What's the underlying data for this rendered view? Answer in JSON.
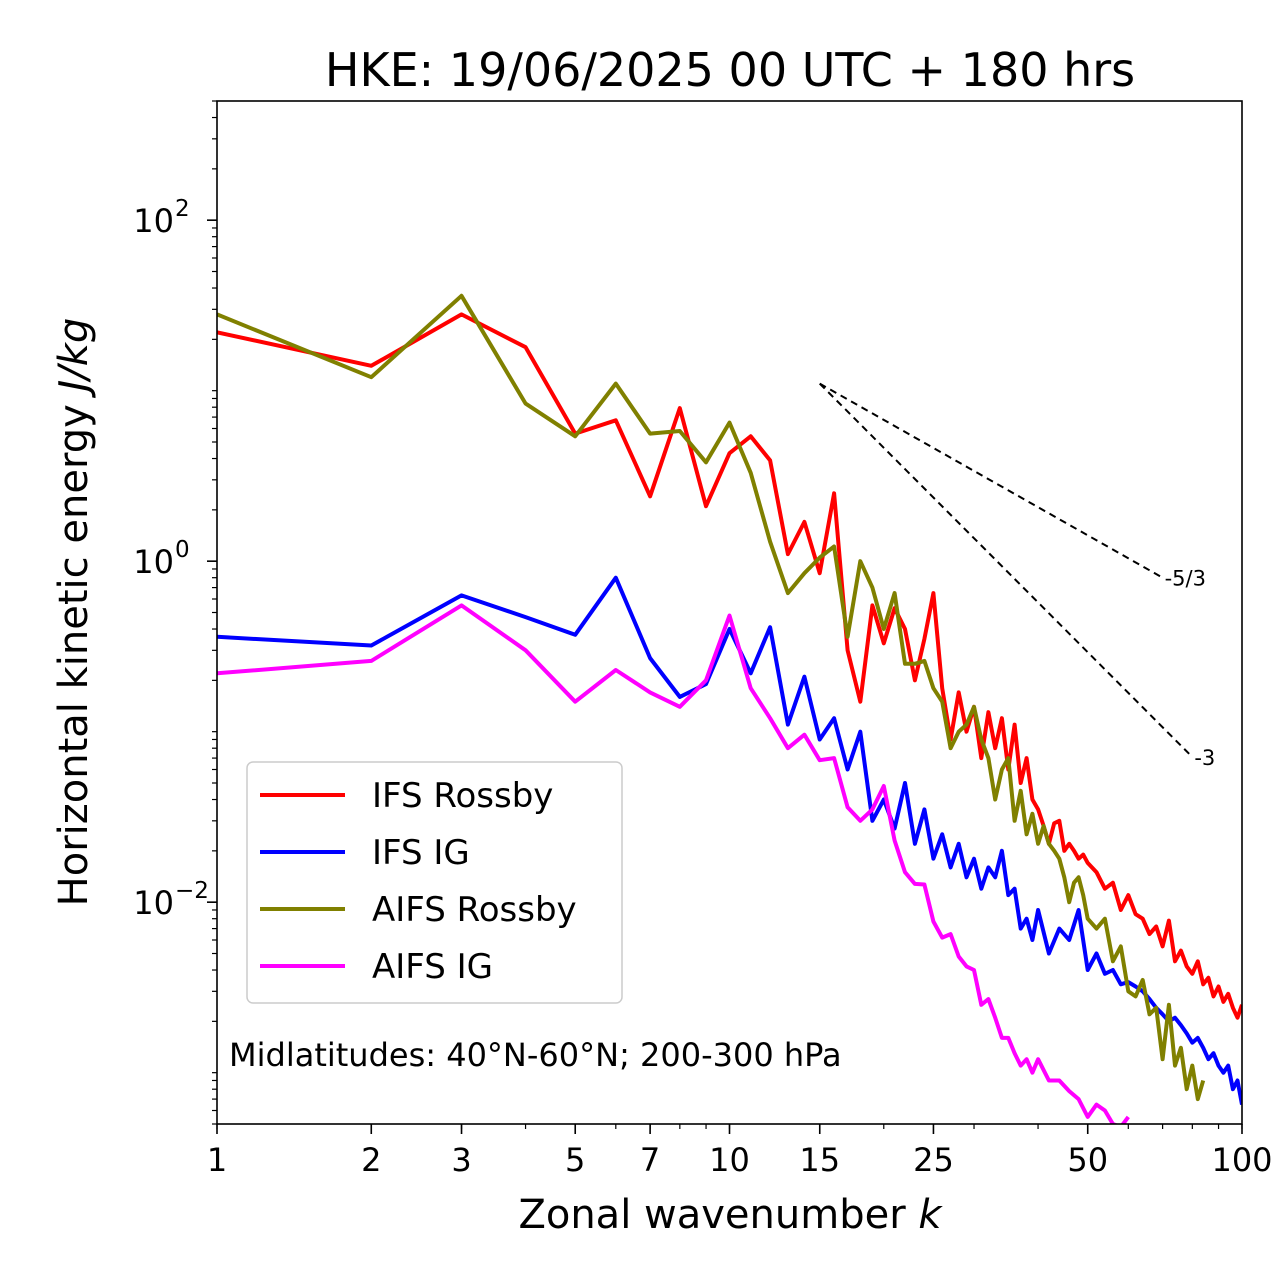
{
  "chart_data": {
    "type": "line",
    "title": "HKE: 19/06/2025 00 UTC + 180 hrs",
    "xlabel": "Zonal wavenumber",
    "xlabel_italic": "k",
    "ylabel": "Horizontal kinetic energy",
    "ylabel_italic": "J/kg",
    "x_scale": "log",
    "y_scale": "log",
    "xlim": [
      1,
      100
    ],
    "ylim": [
      0.0005,
      500
    ],
    "x_ticks": [
      1,
      2,
      3,
      5,
      7,
      10,
      15,
      25,
      50,
      100
    ],
    "x_tick_labels": [
      "1",
      "2",
      "3",
      "5",
      "7",
      "10",
      "15",
      "25",
      "50",
      "100"
    ],
    "y_ticks": [
      0.01,
      1,
      100
    ],
    "y_tick_base": "10",
    "y_tick_exponents": [
      "−2",
      "0",
      "2"
    ],
    "grid": false,
    "legend_position": "lower-left",
    "annotation": "Midlatitudes: 40°N-60°N; 200-300 hPa",
    "reference_lines": [
      {
        "label": "-5/3",
        "slope": -1.6667,
        "x": [
          15,
          70
        ],
        "y": [
          11.0,
          0.8
        ]
      },
      {
        "label": "-3",
        "slope": -3,
        "x": [
          15,
          80
        ],
        "y": [
          11.0,
          0.071
        ]
      }
    ],
    "series": [
      {
        "name": "IFS Rossby",
        "color": "#ff0000",
        "x": [
          1,
          2,
          3,
          4,
          5,
          6,
          7,
          8,
          9,
          10,
          11,
          12,
          13,
          14,
          15,
          16,
          17,
          18,
          19,
          20,
          21,
          22,
          23,
          24,
          25,
          26,
          27,
          28,
          29,
          30,
          31,
          32,
          33,
          34,
          35,
          36,
          37,
          38,
          39,
          40,
          41,
          42,
          43,
          44,
          45,
          46,
          47,
          48,
          49,
          50,
          52,
          54,
          56,
          58,
          60,
          62,
          64,
          66,
          68,
          70,
          72,
          74,
          76,
          78,
          80,
          82,
          84,
          86,
          88,
          90,
          92,
          94,
          96,
          98,
          100
        ],
        "y": [
          22,
          14,
          28,
          18,
          5.6,
          6.7,
          2.4,
          7.9,
          2.1,
          4.3,
          5.4,
          3.9,
          1.1,
          1.7,
          0.85,
          2.5,
          0.3,
          0.15,
          0.55,
          0.33,
          0.53,
          0.4,
          0.2,
          0.35,
          0.65,
          0.18,
          0.09,
          0.17,
          0.1,
          0.14,
          0.07,
          0.13,
          0.08,
          0.12,
          0.06,
          0.11,
          0.05,
          0.07,
          0.04,
          0.035,
          0.028,
          0.022,
          0.029,
          0.03,
          0.02,
          0.022,
          0.02,
          0.018,
          0.019,
          0.017,
          0.015,
          0.012,
          0.013,
          0.009,
          0.011,
          0.0085,
          0.008,
          0.0065,
          0.0072,
          0.0055,
          0.0078,
          0.0045,
          0.0052,
          0.0042,
          0.0038,
          0.0045,
          0.0033,
          0.0036,
          0.0028,
          0.0032,
          0.0026,
          0.0029,
          0.0024,
          0.0021,
          0.0025
        ]
      },
      {
        "name": "IFS IG",
        "color": "#0000ff",
        "x": [
          1,
          2,
          3,
          4,
          5,
          6,
          7,
          8,
          9,
          10,
          11,
          12,
          13,
          14,
          15,
          16,
          17,
          18,
          19,
          20,
          21,
          22,
          23,
          24,
          25,
          26,
          27,
          28,
          29,
          30,
          31,
          32,
          33,
          34,
          35,
          36,
          37,
          38,
          39,
          40,
          42,
          44,
          46,
          48,
          50,
          52,
          54,
          56,
          58,
          60,
          62,
          64,
          66,
          68,
          70,
          72,
          74,
          76,
          78,
          80,
          82,
          84,
          86,
          88,
          90,
          92,
          94,
          96,
          98,
          100
        ],
        "y": [
          0.36,
          0.32,
          0.63,
          0.47,
          0.37,
          0.8,
          0.27,
          0.16,
          0.19,
          0.4,
          0.22,
          0.41,
          0.11,
          0.21,
          0.09,
          0.12,
          0.06,
          0.1,
          0.03,
          0.04,
          0.027,
          0.05,
          0.022,
          0.035,
          0.018,
          0.025,
          0.016,
          0.022,
          0.014,
          0.018,
          0.012,
          0.016,
          0.014,
          0.02,
          0.011,
          0.012,
          0.007,
          0.008,
          0.006,
          0.009,
          0.005,
          0.007,
          0.006,
          0.009,
          0.004,
          0.005,
          0.0038,
          0.004,
          0.0033,
          0.0034,
          0.0032,
          0.003,
          0.0027,
          0.0024,
          0.0022,
          0.002,
          0.0021,
          0.0019,
          0.0017,
          0.0015,
          0.0016,
          0.0014,
          0.0012,
          0.0013,
          0.0011,
          0.001,
          0.0011,
          0.0008,
          0.0009,
          0.00065
        ]
      },
      {
        "name": "AIFS Rossby",
        "color": "#808000",
        "x": [
          1,
          2,
          3,
          4,
          5,
          6,
          7,
          8,
          9,
          10,
          11,
          12,
          13,
          14,
          15,
          16,
          17,
          18,
          19,
          20,
          21,
          22,
          23,
          24,
          25,
          26,
          27,
          28,
          29,
          30,
          31,
          32,
          33,
          34,
          35,
          36,
          37,
          38,
          39,
          40,
          41,
          42,
          43,
          44,
          45,
          46,
          47,
          48,
          49,
          50,
          52,
          54,
          56,
          58,
          60,
          62,
          64,
          66,
          68,
          70,
          72,
          74,
          76,
          78,
          80,
          82,
          84
        ],
        "y": [
          28,
          12,
          36,
          8.4,
          5.4,
          11,
          5.6,
          5.8,
          3.8,
          6.5,
          3.3,
          1.3,
          0.65,
          0.85,
          1.05,
          1.22,
          0.36,
          1.0,
          0.7,
          0.4,
          0.65,
          0.25,
          0.25,
          0.26,
          0.18,
          0.15,
          0.08,
          0.1,
          0.11,
          0.14,
          0.09,
          0.07,
          0.04,
          0.06,
          0.07,
          0.03,
          0.045,
          0.025,
          0.033,
          0.022,
          0.028,
          0.022,
          0.02,
          0.018,
          0.014,
          0.01,
          0.013,
          0.014,
          0.011,
          0.008,
          0.007,
          0.008,
          0.0045,
          0.0055,
          0.003,
          0.0028,
          0.0035,
          0.0022,
          0.0024,
          0.0012,
          0.0025,
          0.0011,
          0.0014,
          0.0008,
          0.0011,
          0.0007,
          0.0009
        ]
      },
      {
        "name": "AIFS IG",
        "color": "#ff00ff",
        "x": [
          1,
          2,
          3,
          4,
          5,
          6,
          7,
          8,
          9,
          10,
          11,
          12,
          13,
          14,
          15,
          16,
          17,
          18,
          19,
          20,
          21,
          22,
          23,
          24,
          25,
          26,
          27,
          28,
          29,
          30,
          31,
          32,
          33,
          34,
          35,
          36,
          37,
          38,
          39,
          40,
          42,
          44,
          46,
          48,
          50,
          52,
          54,
          56,
          58,
          60
        ],
        "y": [
          0.22,
          0.26,
          0.55,
          0.3,
          0.15,
          0.23,
          0.17,
          0.14,
          0.2,
          0.48,
          0.18,
          0.12,
          0.08,
          0.096,
          0.068,
          0.07,
          0.036,
          0.03,
          0.035,
          0.048,
          0.023,
          0.015,
          0.0128,
          0.0127,
          0.0077,
          0.0062,
          0.0065,
          0.0048,
          0.0042,
          0.004,
          0.0025,
          0.0027,
          0.0021,
          0.0016,
          0.0016,
          0.0013,
          0.0011,
          0.0012,
          0.001,
          0.0012,
          0.0009,
          0.0009,
          0.00078,
          0.0007,
          0.00055,
          0.00065,
          0.0006,
          0.0005,
          0.00048,
          0.00055
        ]
      }
    ]
  }
}
